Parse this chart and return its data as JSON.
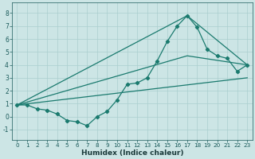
{
  "title": "",
  "xlabel": "Humidex (Indice chaleur)",
  "bg_color": "#cce5e5",
  "grid_color": "#aacfcf",
  "line_color": "#1a7a6e",
  "xlim": [
    -0.5,
    23.5
  ],
  "ylim": [
    -1.8,
    8.8
  ],
  "xticks": [
    0,
    1,
    2,
    3,
    4,
    5,
    6,
    7,
    8,
    9,
    10,
    11,
    12,
    13,
    14,
    15,
    16,
    17,
    18,
    19,
    20,
    21,
    22,
    23
  ],
  "yticks": [
    -1,
    0,
    1,
    2,
    3,
    4,
    5,
    6,
    7,
    8
  ],
  "line1_x": [
    0,
    1,
    2,
    3,
    4,
    5,
    6,
    7,
    8,
    9,
    10,
    11,
    12,
    13,
    14,
    15,
    16,
    17,
    18,
    19,
    20,
    21,
    22,
    23
  ],
  "line1_y": [
    0.9,
    0.9,
    0.6,
    0.5,
    0.2,
    -0.3,
    -0.4,
    -0.7,
    0.0,
    0.4,
    1.3,
    2.5,
    2.6,
    3.0,
    4.3,
    5.8,
    7.0,
    7.8,
    6.9,
    5.2,
    4.7,
    4.5,
    3.5,
    4.0
  ],
  "line2_x": [
    0,
    23
  ],
  "line2_y": [
    0.9,
    3.0
  ],
  "line3_x": [
    0,
    17,
    23
  ],
  "line3_y": [
    0.9,
    4.7,
    4.0
  ],
  "line4_x": [
    0,
    17,
    23
  ],
  "line4_y": [
    0.9,
    7.8,
    4.0
  ]
}
